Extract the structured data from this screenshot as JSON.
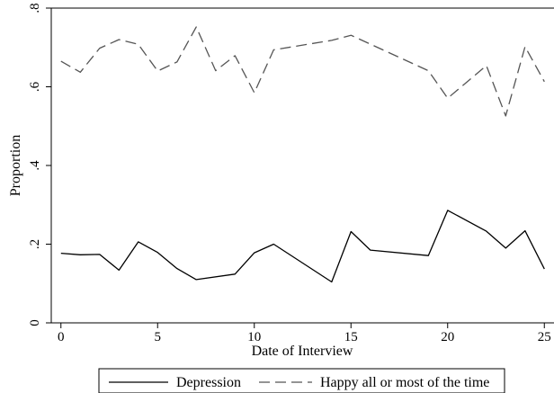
{
  "chart_data": {
    "type": "line",
    "title": "",
    "xlabel": "Date of Interview",
    "ylabel": "Proportion",
    "xlim": [
      -0.5,
      25.5
    ],
    "ylim": [
      0,
      0.8
    ],
    "xticks": [
      0,
      5,
      10,
      15,
      20,
      25
    ],
    "xtick_labels": [
      "0",
      "5",
      "10",
      "15",
      "20",
      "25"
    ],
    "yticks": [
      0,
      0.2,
      0.4,
      0.6,
      0.8
    ],
    "ytick_labels": [
      "0",
      ".2",
      ".4",
      ".6",
      ".8"
    ],
    "grid": false,
    "legend_position": "bottom",
    "series": [
      {
        "name": "Depression",
        "style": "solid",
        "color": "#000000",
        "x": [
          0,
          1,
          2,
          3,
          4,
          5,
          6,
          7,
          9,
          10,
          11,
          14,
          15,
          16,
          19,
          20,
          22,
          23,
          24,
          25
        ],
        "y": [
          0.177,
          0.173,
          0.174,
          0.134,
          0.206,
          0.179,
          0.138,
          0.11,
          0.124,
          0.178,
          0.2,
          0.104,
          0.232,
          0.185,
          0.171,
          0.286,
          0.233,
          0.19,
          0.234,
          0.137
        ]
      },
      {
        "name": "Happy all or most of the time",
        "style": "dashed",
        "color": "#555555",
        "x": [
          0,
          1,
          2,
          3,
          4,
          5,
          6,
          7,
          8,
          9,
          10,
          11,
          14,
          15,
          19,
          20,
          22,
          23,
          24,
          25
        ],
        "y": [
          0.665,
          0.637,
          0.698,
          0.72,
          0.708,
          0.64,
          0.663,
          0.752,
          0.641,
          0.679,
          0.585,
          0.694,
          0.718,
          0.731,
          0.641,
          0.571,
          0.654,
          0.526,
          0.702,
          0.613
        ]
      }
    ]
  }
}
